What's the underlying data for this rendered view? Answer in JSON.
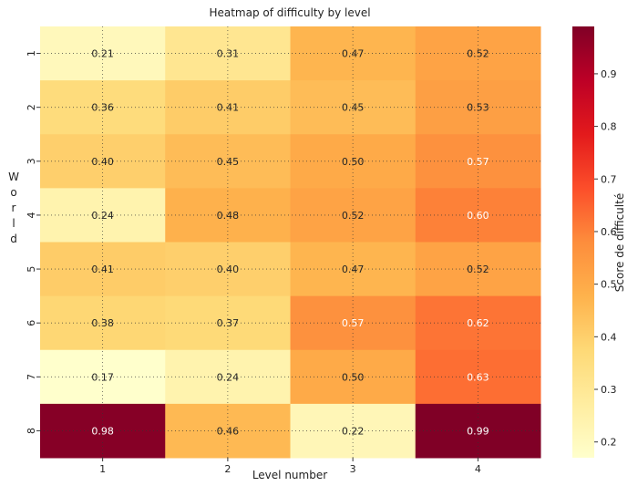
{
  "chart_data": {
    "type": "heatmap",
    "title": "Heatmap of difficulty by level",
    "xlabel": "Level number",
    "ylabel": "World",
    "x_categories": [
      "1",
      "2",
      "3",
      "4"
    ],
    "y_categories": [
      "1",
      "2",
      "3",
      "4",
      "5",
      "6",
      "7",
      "8"
    ],
    "values": [
      [
        0.21,
        0.31,
        0.47,
        0.52
      ],
      [
        0.36,
        0.41,
        0.45,
        0.53
      ],
      [
        0.4,
        0.45,
        0.5,
        0.57
      ],
      [
        0.24,
        0.48,
        0.52,
        0.6
      ],
      [
        0.41,
        0.4,
        0.47,
        0.52
      ],
      [
        0.38,
        0.37,
        0.57,
        0.62
      ],
      [
        0.17,
        0.24,
        0.5,
        0.63
      ],
      [
        0.98,
        0.46,
        0.22,
        0.99
      ]
    ],
    "value_labels": [
      [
        "0.21",
        "0.31",
        "0.47",
        "0.52"
      ],
      [
        "0.36",
        "0.41",
        "0.45",
        "0.53"
      ],
      [
        "0.40",
        "0.45",
        "0.50",
        "0.57"
      ],
      [
        "0.24",
        "0.48",
        "0.52",
        "0.60"
      ],
      [
        "0.41",
        "0.40",
        "0.47",
        "0.52"
      ],
      [
        "0.38",
        "0.37",
        "0.57",
        "0.62"
      ],
      [
        "0.17",
        "0.24",
        "0.50",
        "0.63"
      ],
      [
        "0.98",
        "0.46",
        "0.22",
        "0.99"
      ]
    ],
    "colorbar": {
      "label": "Score de difficulté",
      "range": [
        0.17,
        0.99
      ],
      "ticks": [
        "0.2",
        "0.3",
        "0.4",
        "0.5",
        "0.6",
        "0.7",
        "0.8",
        "0.9"
      ],
      "colormap": "YlOrRd"
    },
    "grid": true
  }
}
